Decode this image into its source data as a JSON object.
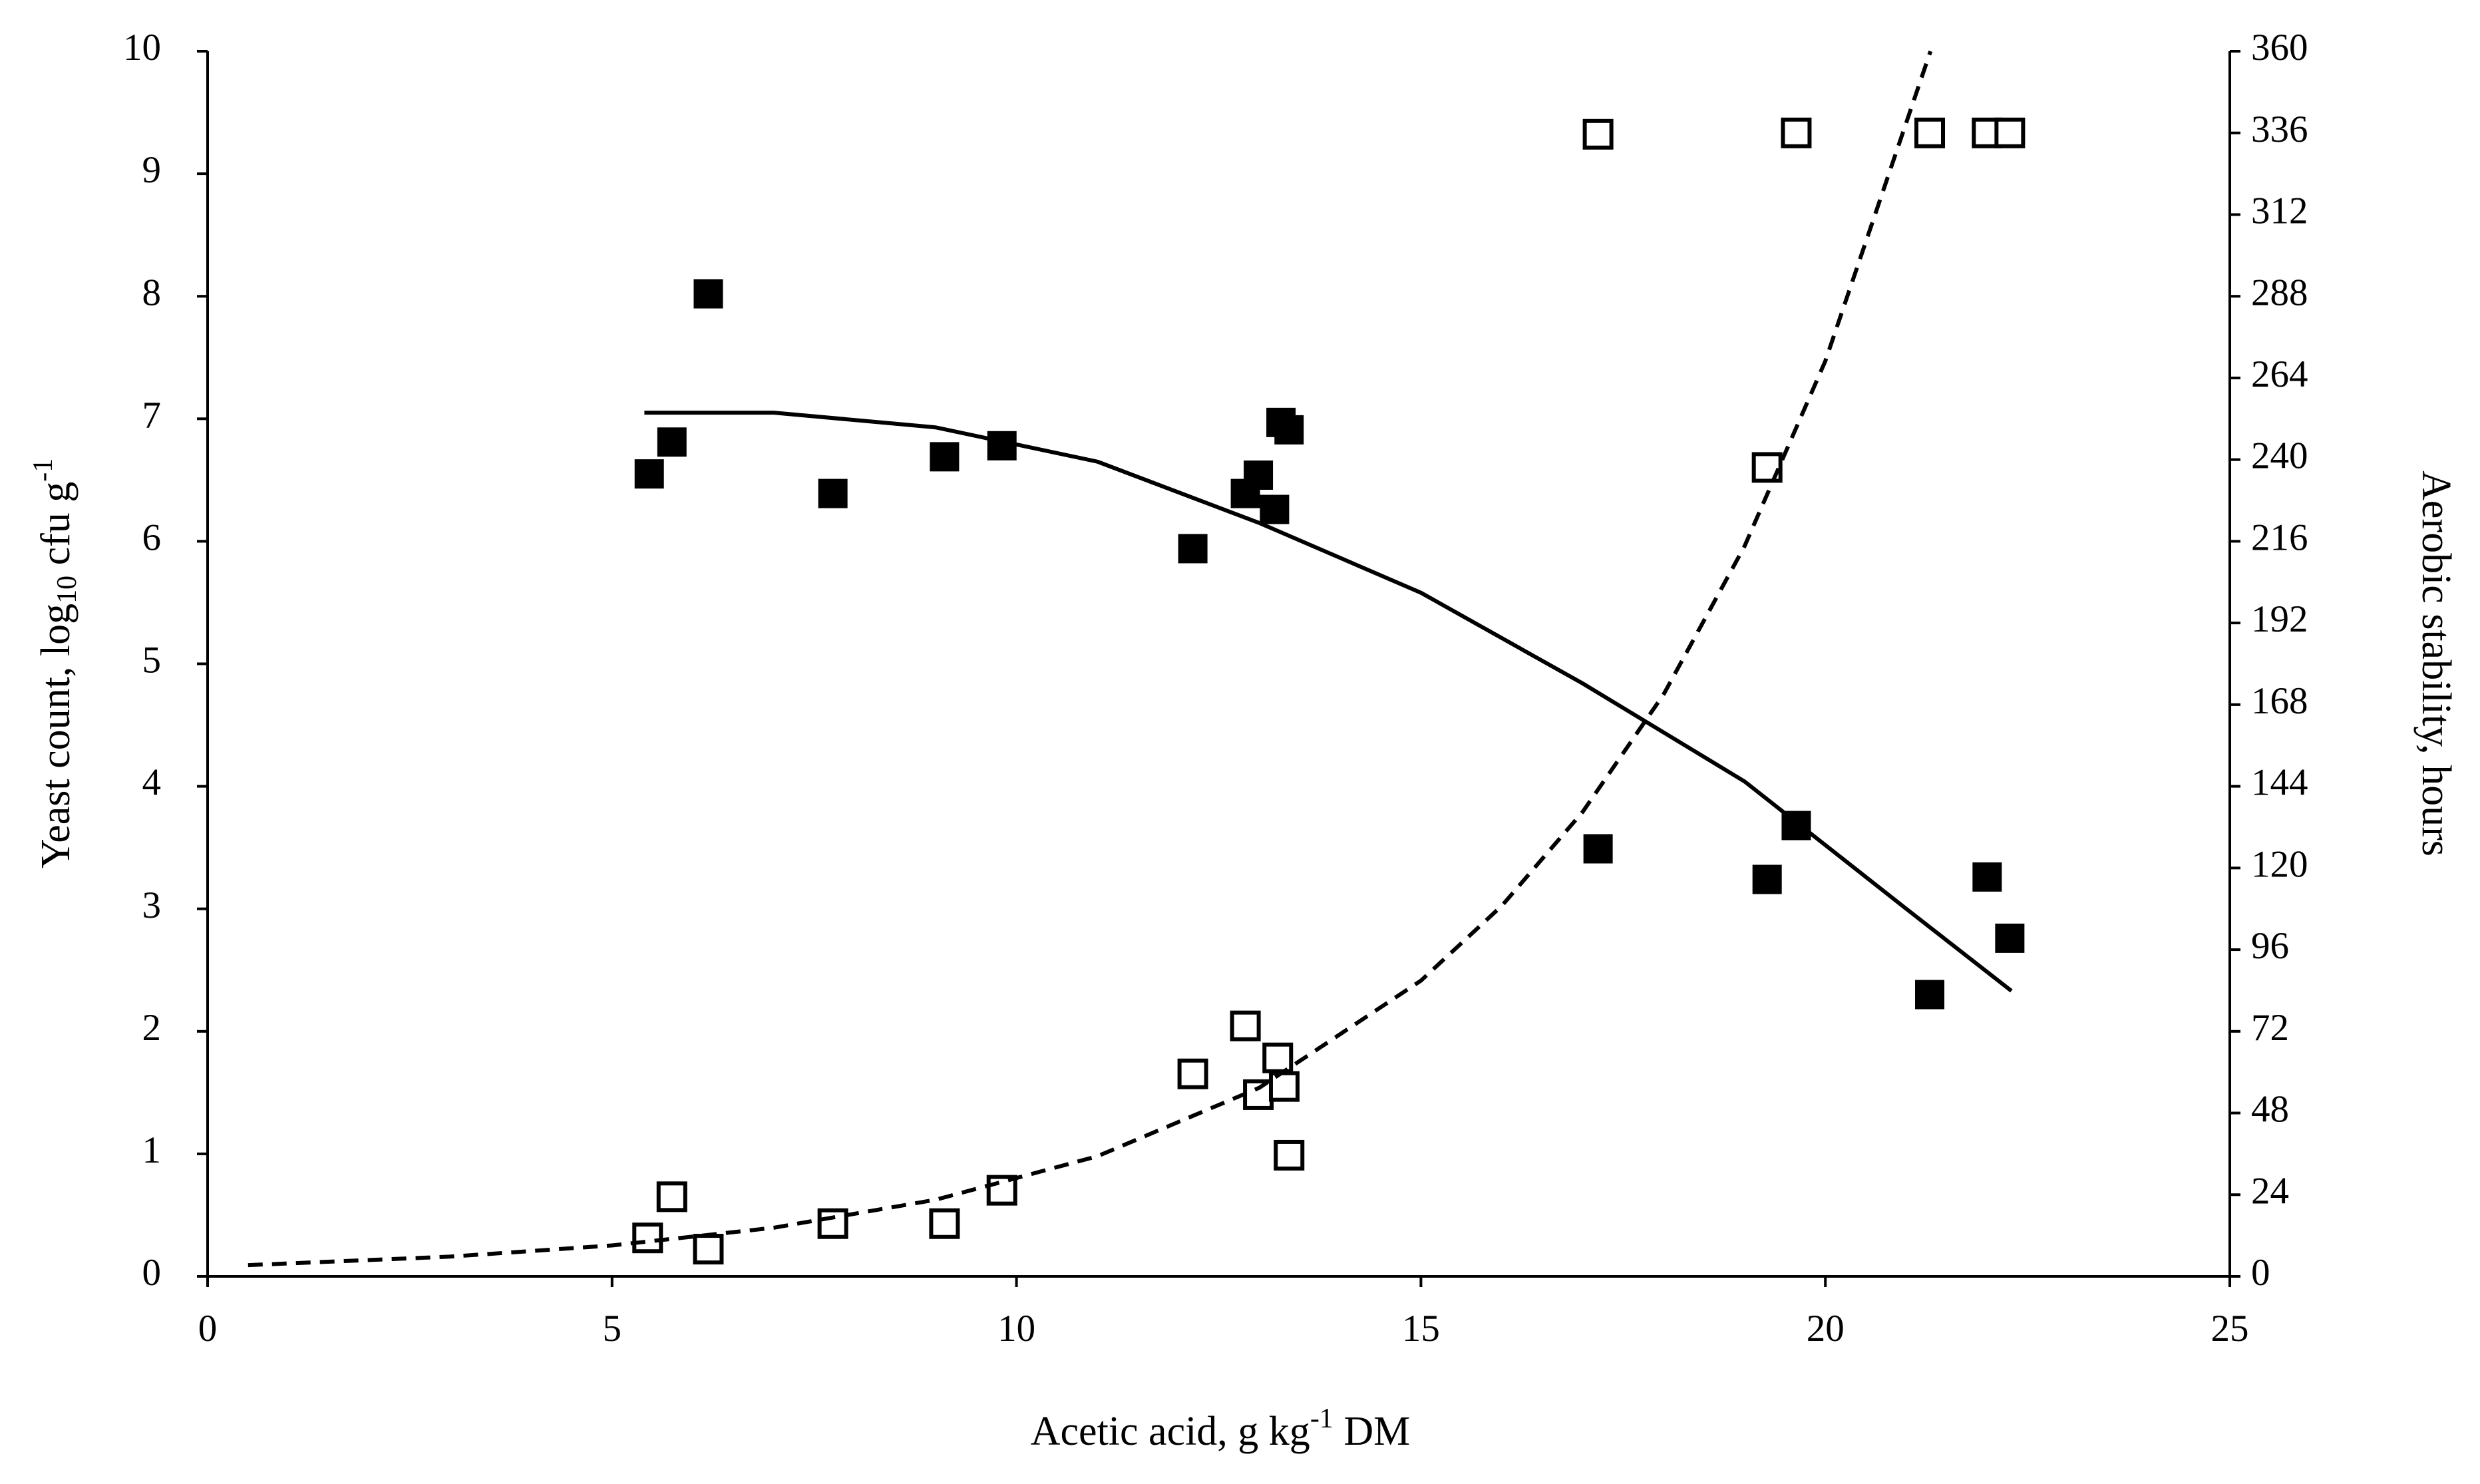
{
  "chart_data": {
    "type": "scatter",
    "xlim": [
      0,
      25
    ],
    "xticks": [
      0,
      5,
      10,
      15,
      20,
      25
    ],
    "ylim": [
      0,
      10
    ],
    "yticks": [
      0,
      1,
      2,
      3,
      4,
      5,
      6,
      7,
      8,
      9,
      10
    ],
    "y2lim": [
      0,
      360
    ],
    "y2ticks": [
      0,
      24,
      48,
      72,
      96,
      120,
      144,
      168,
      192,
      216,
      240,
      264,
      288,
      312,
      336,
      360
    ],
    "x_label": [
      "Acetic acid, g kg",
      "-1",
      " DM"
    ],
    "y_label": [
      "Yeast count, log",
      "10",
      " cfu g",
      "-1"
    ],
    "y2_label": "Aerobic stability, hours",
    "series": [
      {
        "type": "scatter",
        "marker": "filled-square",
        "color": "#000000",
        "x": [
          5.46,
          5.74,
          6.19,
          7.73,
          9.11,
          9.82,
          12.18,
          12.83,
          12.99,
          13.19,
          13.27,
          13.37,
          17.19,
          19.28,
          19.64,
          21.29,
          22.0,
          22.28
        ],
        "values": [
          6.55,
          6.81,
          8.02,
          6.39,
          6.69,
          6.78,
          5.94,
          6.39,
          6.54,
          6.26,
          6.97,
          6.91,
          3.49,
          3.24,
          3.68,
          2.3,
          3.26,
          2.76
        ]
      },
      {
        "type": "scatter",
        "marker": "open-square",
        "color": "#000000",
        "axis": "y2",
        "x": [
          5.44,
          5.74,
          6.19,
          7.73,
          9.11,
          9.82,
          12.18,
          12.83,
          12.99,
          13.23,
          13.31,
          13.37,
          17.19,
          19.28,
          19.64,
          21.29,
          22.0,
          22.28
        ],
        "values": [
          11.3,
          23.4,
          8.0,
          15.5,
          15.5,
          25.3,
          59.5,
          73.6,
          53.4,
          64.2,
          55.8,
          35.6,
          335.6,
          237.7,
          336,
          336,
          336,
          336
        ]
      },
      {
        "type": "line",
        "style": "solid",
        "color": "#000000",
        "x": [
          5.4,
          7,
          9,
          11,
          13,
          15,
          17,
          19,
          21,
          22.3
        ],
        "values": [
          7.05,
          7.05,
          6.93,
          6.65,
          6.15,
          5.58,
          4.84,
          4.04,
          3.0,
          2.33
        ]
      },
      {
        "type": "line",
        "style": "dashed",
        "color": "#000000",
        "axis": "y2",
        "x": [
          0.5,
          3,
          5,
          7,
          9,
          11,
          13,
          15,
          16,
          17,
          18,
          19,
          20,
          21.3
        ],
        "values": [
          3.3,
          5.8,
          9.1,
          14.3,
          22.5,
          35.3,
          55.4,
          86.9,
          108.9,
          136.5,
          171,
          214.5,
          269,
          360
        ]
      }
    ]
  }
}
